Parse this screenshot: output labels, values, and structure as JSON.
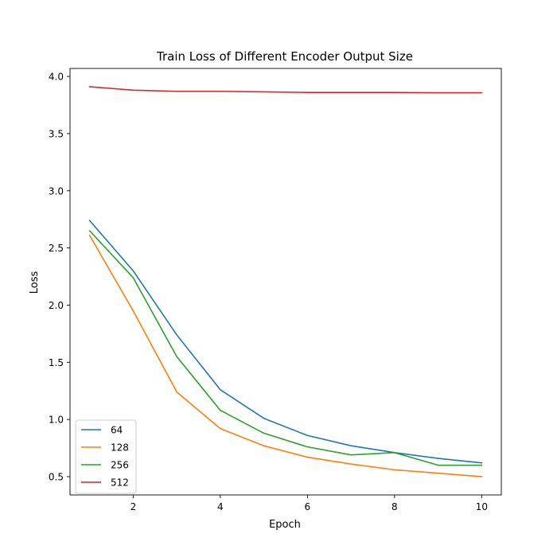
{
  "chart_data": {
    "type": "line",
    "title": "Train Loss of Different Encoder Output Size",
    "xlabel": "Epoch",
    "ylabel": "Loss",
    "xlim": [
      0.55,
      10.45
    ],
    "ylim": [
      0.34,
      4.07
    ],
    "xticks": [
      2,
      4,
      6,
      8,
      10
    ],
    "xtick_labels": [
      "2",
      "4",
      "6",
      "8",
      "10"
    ],
    "yticks": [
      0.5,
      1.0,
      1.5,
      2.0,
      2.5,
      3.0,
      3.5,
      4.0
    ],
    "ytick_labels": [
      "0.5",
      "1.0",
      "1.5",
      "2.0",
      "2.5",
      "3.0",
      "3.5",
      "4.0"
    ],
    "grid": false,
    "legend_position": "lower-left",
    "x": [
      1,
      2,
      3,
      4,
      5,
      6,
      7,
      8,
      9,
      10
    ],
    "series": [
      {
        "name": "64",
        "color": "#1f77b4",
        "values": [
          2.74,
          2.3,
          1.74,
          1.26,
          1.01,
          0.86,
          0.77,
          0.71,
          0.66,
          0.62
        ]
      },
      {
        "name": "128",
        "color": "#ff7f0e",
        "values": [
          2.61,
          1.95,
          1.24,
          0.92,
          0.77,
          0.67,
          0.61,
          0.56,
          0.53,
          0.5
        ]
      },
      {
        "name": "256",
        "color": "#2ca02c",
        "values": [
          2.65,
          2.24,
          1.55,
          1.08,
          0.88,
          0.76,
          0.69,
          0.71,
          0.6,
          0.6
        ]
      },
      {
        "name": "512",
        "color": "#d62728",
        "values": [
          3.91,
          3.88,
          3.87,
          3.87,
          3.865,
          3.86,
          3.86,
          3.86,
          3.857,
          3.857
        ]
      }
    ]
  }
}
